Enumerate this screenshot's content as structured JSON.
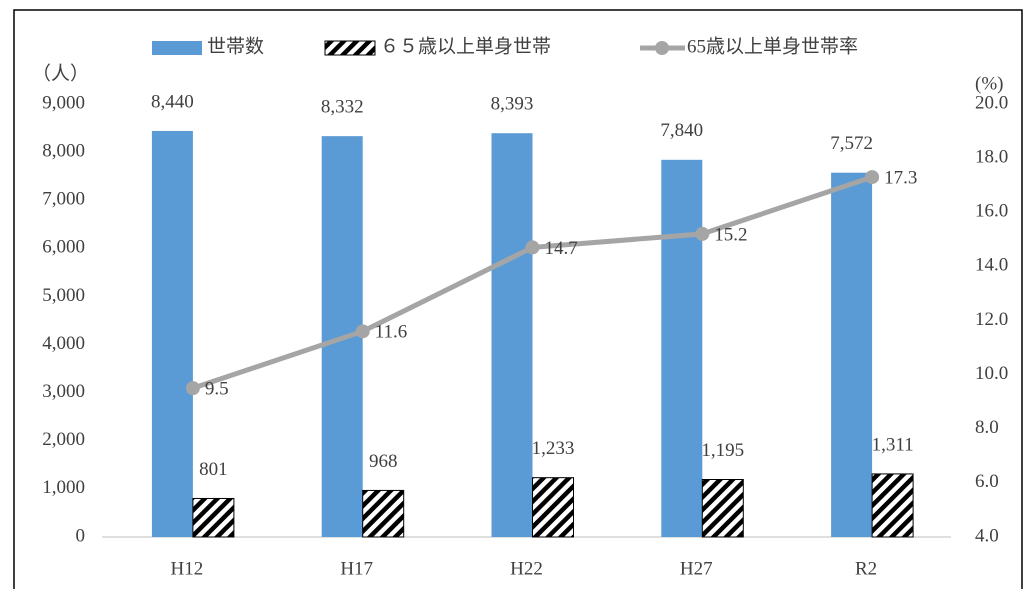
{
  "chart_data": {
    "type": "bar_line",
    "y_unit": "（人）",
    "y2_unit": "(%)",
    "categories": [
      "H12",
      "H17",
      "H22",
      "H27",
      "R2"
    ],
    "series": [
      {
        "name": "世帯数",
        "color": "#5b9bd5",
        "values": [
          8440,
          8332,
          8393,
          7840,
          7572
        ],
        "value_labels": [
          "8,440",
          "8,332",
          "8,393",
          "7,840",
          "7,572"
        ]
      },
      {
        "name": "６５歳以上単身世帯",
        "color": "#000000",
        "pattern": "hatch",
        "values": [
          801,
          968,
          1233,
          1195,
          1311
        ],
        "value_labels": [
          "801",
          "968",
          "1,233",
          "1,195",
          "1,311"
        ]
      },
      {
        "name": "65歳以上単身世帯率",
        "color": "#a5a5a5",
        "type": "line",
        "axis": "y2",
        "values": [
          9.5,
          11.6,
          14.7,
          15.2,
          17.3
        ]
      }
    ],
    "ylim": [
      0,
      9000
    ],
    "yticks": [
      0,
      {
        "value": 1000,
        "label": "1,000"
      },
      {
        "value": 2000,
        "label": "2,000"
      },
      {
        "value": 3000,
        "label": "3,000"
      },
      {
        "value": 4000,
        "label": "4,000"
      },
      {
        "value": 5000,
        "label": "5,000"
      },
      {
        "value": 6000,
        "label": "6,000"
      },
      {
        "value": 7000,
        "label": "7,000"
      },
      {
        "value": 8000,
        "label": "8,000"
      },
      {
        "value": 9000,
        "label": "9,000"
      }
    ],
    "y2lim": [
      4,
      20
    ],
    "y2ticks": [
      {
        "value": 4,
        "label": "4.0"
      },
      {
        "value": 6,
        "label": "6.0"
      },
      {
        "value": 8,
        "label": "8.0"
      },
      {
        "value": 10,
        "label": "10.0"
      },
      {
        "value": 12,
        "label": "12.0"
      },
      {
        "value": 14,
        "label": "14.0"
      },
      {
        "value": 16,
        "label": "16.0"
      },
      {
        "value": 18,
        "label": "18.0"
      },
      {
        "value": 20,
        "label": "20.0"
      }
    ],
    "legend": "top"
  }
}
